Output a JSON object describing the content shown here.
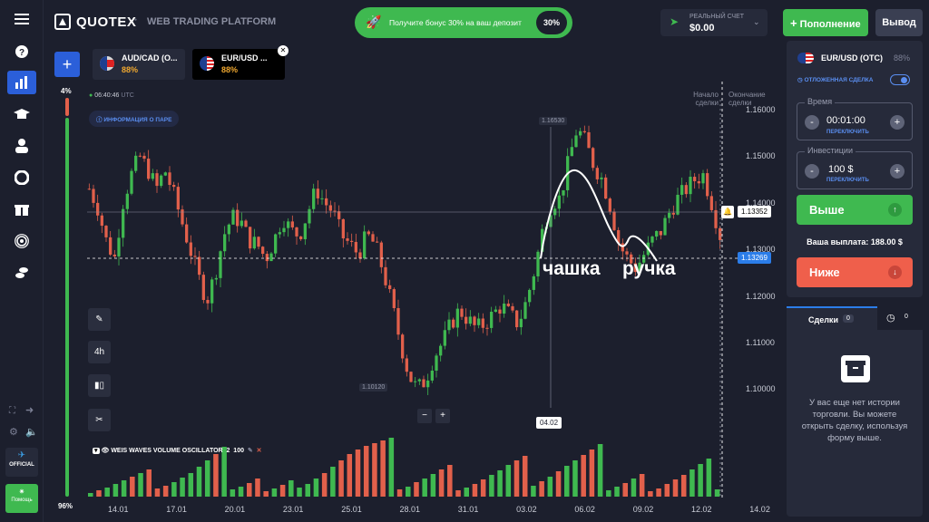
{
  "header": {
    "logo": "QUOTEX",
    "subtitle": "WEB TRADING PLATFORM",
    "bonus_text": "Получите бонус 30% на ваш депозит",
    "bonus_badge": "30%",
    "account_label": "РЕАЛЬНЫЙ СЧЕТ",
    "balance": "$0.00",
    "deposit_label": "Пополнение",
    "withdraw_label": "Вывод"
  },
  "tabs": [
    {
      "name": "AUD/CAD (O...",
      "payout": "88%"
    },
    {
      "name": "EUR/USD ...",
      "payout": "88%"
    }
  ],
  "sidebar": {
    "up_pct": "4%",
    "down_pct": "96%",
    "official_label": "OFFICIAL",
    "help_label": "Помощь"
  },
  "chart_info": {
    "time": "06:40:46",
    "tz": "UTC",
    "pair_info": "ИНФОРМАЦИЯ О ПАРЕ",
    "start_label": "Начало сделки",
    "end_label": "Окончание сделки",
    "max_label": "1.16530",
    "min_label": "1.10120",
    "crosshair_price": "1.13352",
    "current_price": "1.13269",
    "crosshair_date": "04.02",
    "annotation_cup": "чашка",
    "annotation_handle": "ручка",
    "timeframe": "4h",
    "indicator": "WEIS WAVES VOLUME OSCILLATOR",
    "indicator_p1": "2",
    "indicator_p2": "100",
    "zoom_minus": "−",
    "zoom_plus": "+"
  },
  "chart_data": {
    "type": "candlestick",
    "yticks": [
      "1.16000",
      "1.15000",
      "1.14000",
      "1.13000",
      "1.12000",
      "1.11000",
      "1.10000"
    ],
    "ytick_values": [
      1.16,
      1.15,
      1.14,
      1.13,
      1.12,
      1.11,
      1.1
    ],
    "xticks": [
      "14.01",
      "17.01",
      "20.01",
      "23.01",
      "25.01",
      "28.01",
      "31.01",
      "03.02",
      "06.02",
      "09.02",
      "12.02",
      "14.02"
    ],
    "ylim": [
      1.096,
      1.166
    ],
    "close_path": [
      1.143,
      1.139,
      1.132,
      1.128,
      1.14,
      1.146,
      1.15,
      1.147,
      1.143,
      1.147,
      1.142,
      1.136,
      1.13,
      1.124,
      1.119,
      1.125,
      1.133,
      1.137,
      1.136,
      1.132,
      1.131,
      1.128,
      1.132,
      1.137,
      1.134,
      1.133,
      1.138,
      1.143,
      1.14,
      1.138,
      1.133,
      1.131,
      1.129,
      1.133,
      1.131,
      1.125,
      1.118,
      1.11,
      1.103,
      1.1,
      1.102,
      1.107,
      1.11,
      1.114,
      1.117,
      1.115,
      1.113,
      1.114,
      1.116,
      1.118,
      1.116,
      1.114,
      1.119,
      1.126,
      1.135,
      1.14,
      1.141,
      1.149,
      1.156,
      1.153,
      1.148,
      1.145,
      1.139,
      1.131,
      1.128,
      1.126,
      1.129,
      1.132,
      1.134,
      1.138,
      1.141,
      1.143,
      1.145,
      1.146,
      1.14,
      1.133
    ],
    "volume_heights": [
      4,
      7,
      10,
      14,
      18,
      22,
      26,
      30,
      9,
      12,
      16,
      21,
      26,
      33,
      40,
      47,
      55,
      8,
      11,
      15,
      20,
      6,
      9,
      13,
      18,
      10,
      14,
      20,
      26,
      33,
      40,
      47,
      52,
      56,
      59,
      62,
      65,
      8,
      11,
      16,
      20,
      25,
      30,
      35,
      7,
      10,
      14,
      19,
      24,
      29,
      35,
      40,
      45,
      12,
      17,
      22,
      28,
      34,
      40,
      46,
      52,
      58,
      7,
      11,
      15,
      20,
      25,
      6,
      9,
      14,
      19,
      24,
      30,
      36,
      42,
      8
    ]
  },
  "panel": {
    "pair": "EUR/USD (OTC)",
    "payout": "88%",
    "pending_label": "ОТЛОЖЕННАЯ СДЕЛКА",
    "time_label": "Время",
    "time_value": "00:01:00",
    "switch_label": "ПЕРЕКЛЮЧИТЬ",
    "invest_label": "Инвестиции",
    "invest_value": "100 $",
    "up_label": "Выше",
    "payout_label": "Ваша выплата: 188.00 $",
    "down_label": "Ниже",
    "minus": "-",
    "plus": "+"
  },
  "trades": {
    "tab_label": "Сделки",
    "count": "0",
    "history_count": "0",
    "empty_text": "У вас еще нет истории торговли. Вы можете открыть сделку, используя форму выше."
  },
  "colors": {
    "bull": "#3fb950",
    "bear": "#e2604b",
    "accent": "#2b5fd9",
    "up_btn": "#3fb950",
    "down_btn": "#ef5f4b"
  }
}
